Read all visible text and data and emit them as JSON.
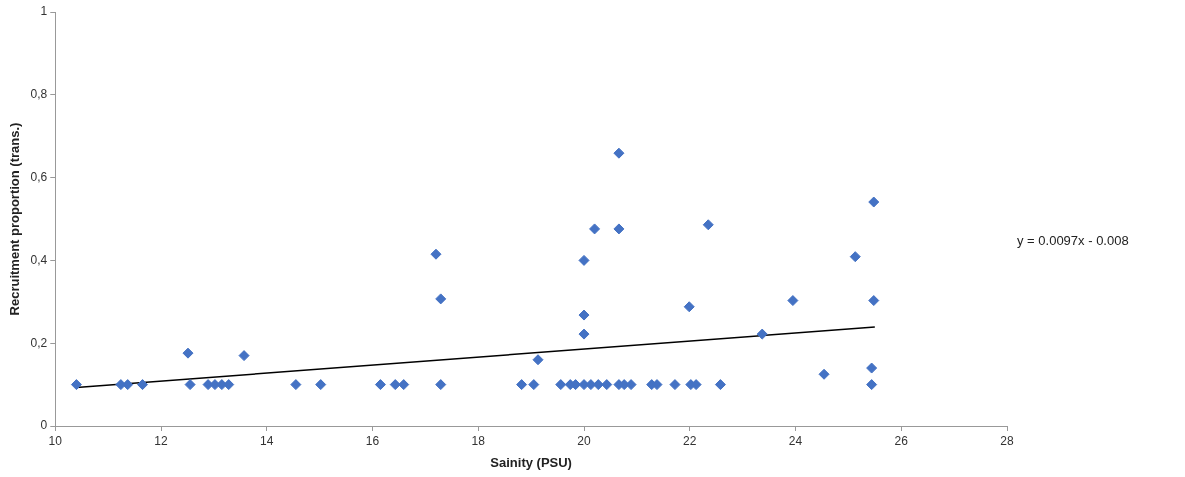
{
  "chart_data": {
    "type": "scatter",
    "xlabel": "Sainity (PSU)",
    "ylabel": "Recruitment proportion (trans.)",
    "xlim": [
      10,
      28
    ],
    "xticks": [
      10,
      12,
      14,
      16,
      18,
      20,
      22,
      24,
      26,
      28
    ],
    "ylim": [
      0,
      1
    ],
    "yticks": [
      0,
      {
        "value": 0.2,
        "label": "0,2"
      },
      {
        "value": 0.4,
        "label": "0,4"
      },
      {
        "value": 0.6,
        "label": "0,6"
      },
      {
        "value": 0.8,
        "label": "0,8"
      },
      1
    ],
    "grid": false,
    "legend": false,
    "marker": "diamond",
    "series": [
      {
        "type": "scatter",
        "color": "#4472c4",
        "x": [
          10.4,
          11.24,
          11.37,
          11.65,
          12.51,
          12.55,
          12.89,
          13.02,
          13.15,
          13.28,
          13.57,
          14.55,
          15.02,
          16.15,
          16.43,
          16.59,
          17.2,
          17.29,
          17.29,
          18.82,
          19.05,
          19.13,
          19.56,
          19.74,
          19.84,
          20.0,
          20.13,
          20.27,
          20.43,
          20.66,
          20.76,
          20.89,
          21.28,
          21.38,
          21.72,
          22.02,
          22.12,
          22.58,
          25.44,
          20.66,
          20.2,
          20.66,
          22.35,
          20.0,
          20.0,
          20.0,
          21.99,
          23.37,
          23.95,
          24.54,
          25.13,
          25.48,
          25.48,
          25.44
        ],
        "values": [
          0.1,
          0.1,
          0.1,
          0.1,
          0.176,
          0.1,
          0.1,
          0.1,
          0.1,
          0.1,
          0.17,
          0.1,
          0.1,
          0.1,
          0.1,
          0.1,
          0.415,
          0.307,
          0.1,
          0.1,
          0.1,
          0.16,
          0.1,
          0.1,
          0.1,
          0.1,
          0.1,
          0.1,
          0.1,
          0.1,
          0.1,
          0.1,
          0.1,
          0.1,
          0.1,
          0.1,
          0.1,
          0.1,
          0.1,
          0.659,
          0.476,
          0.476,
          0.486,
          0.4,
          0.268,
          0.222,
          0.288,
          0.222,
          0.303,
          0.125,
          0.409,
          0.541,
          0.303,
          0.14
        ]
      },
      {
        "type": "line",
        "color": "#000000",
        "marker": "none",
        "x": [
          10.4,
          25.5
        ],
        "values": [
          0.093,
          0.239
        ]
      }
    ],
    "annotations": [
      "y = 0.0097x - 0.008"
    ]
  }
}
